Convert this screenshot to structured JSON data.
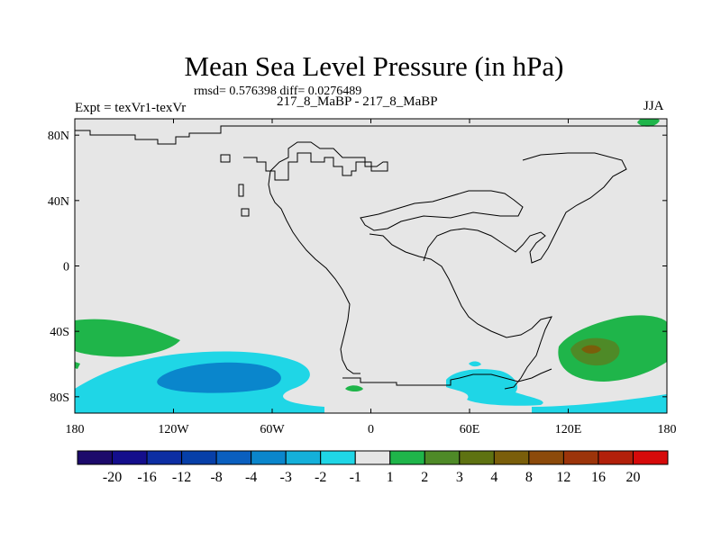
{
  "title": "Mean Sea Level Pressure (in hPa)",
  "stats": "rmsd= 0.576398 diff= 0.0276489",
  "left_label": "Expt = texVr1-texVr",
  "center_label": "217_8_MaBP - 217_8_MaBP",
  "right_label": "JJA",
  "lat_ticks": [
    {
      "label": "80N",
      "lat": 80
    },
    {
      "label": "40N",
      "lat": 40
    },
    {
      "label": "0",
      "lat": 0
    },
    {
      "label": "40S",
      "lat": -40
    },
    {
      "label": "80S",
      "lat": -80
    }
  ],
  "lon_ticks": [
    {
      "label": "180",
      "lon": -180
    },
    {
      "label": "120W",
      "lon": -120
    },
    {
      "label": "60W",
      "lon": -60
    },
    {
      "label": "0",
      "lon": 0
    },
    {
      "label": "60E",
      "lon": 60
    },
    {
      "label": "120E",
      "lon": 120
    },
    {
      "label": "180",
      "lon": 180
    }
  ],
  "colorbar": {
    "colors": [
      "#1c0a6b",
      "#140e8c",
      "#0d2ea3",
      "#073fa8",
      "#0a5fbf",
      "#0a86cc",
      "#14b0da",
      "#1fd6e6",
      "#e5e5e5",
      "#1fb54a",
      "#4e8a27",
      "#5e7211",
      "#7a5e0a",
      "#8c4a0a",
      "#9c340a",
      "#b2200a",
      "#d60a0a"
    ],
    "labels": [
      "-20",
      "-16",
      "-12",
      "-8",
      "-4",
      "-3",
      "-2",
      "-1",
      "1",
      "2",
      "3",
      "4",
      "8",
      "12",
      "16",
      "20"
    ]
  },
  "chart_data": {
    "type": "map",
    "variable": "Mean Sea Level Pressure difference (hPa)",
    "season": "JJA",
    "lon_range": [
      -180,
      180
    ],
    "lat_range": [
      -90,
      90
    ],
    "features": [
      {
        "region": "South Pacific (~40S-50S, 180-155W)",
        "range": "1 to 2"
      },
      {
        "region": "South Pacific (~55S-80S, 175W-20W)",
        "range": "-2 to -1"
      },
      {
        "region": "South Pacific core (~62S-75S, 135W-75W)",
        "range": "-3 to -2"
      },
      {
        "region": "Near 30W 75S",
        "range": "1 to 2"
      },
      {
        "region": "South of Africa (~62S-80S, 15E-55E)",
        "range": "-2 to -1"
      },
      {
        "region": "South Indian/Pacific (~35S-65S, 110E-180)",
        "range": "1 to 2"
      },
      {
        "region": "Core near 125E 50S",
        "range": "3 to 4"
      },
      {
        "region": "Near 170E 88N",
        "range": "1 to 2"
      },
      {
        "region": "Remainder",
        "range": "-1 to 1"
      }
    ]
  }
}
